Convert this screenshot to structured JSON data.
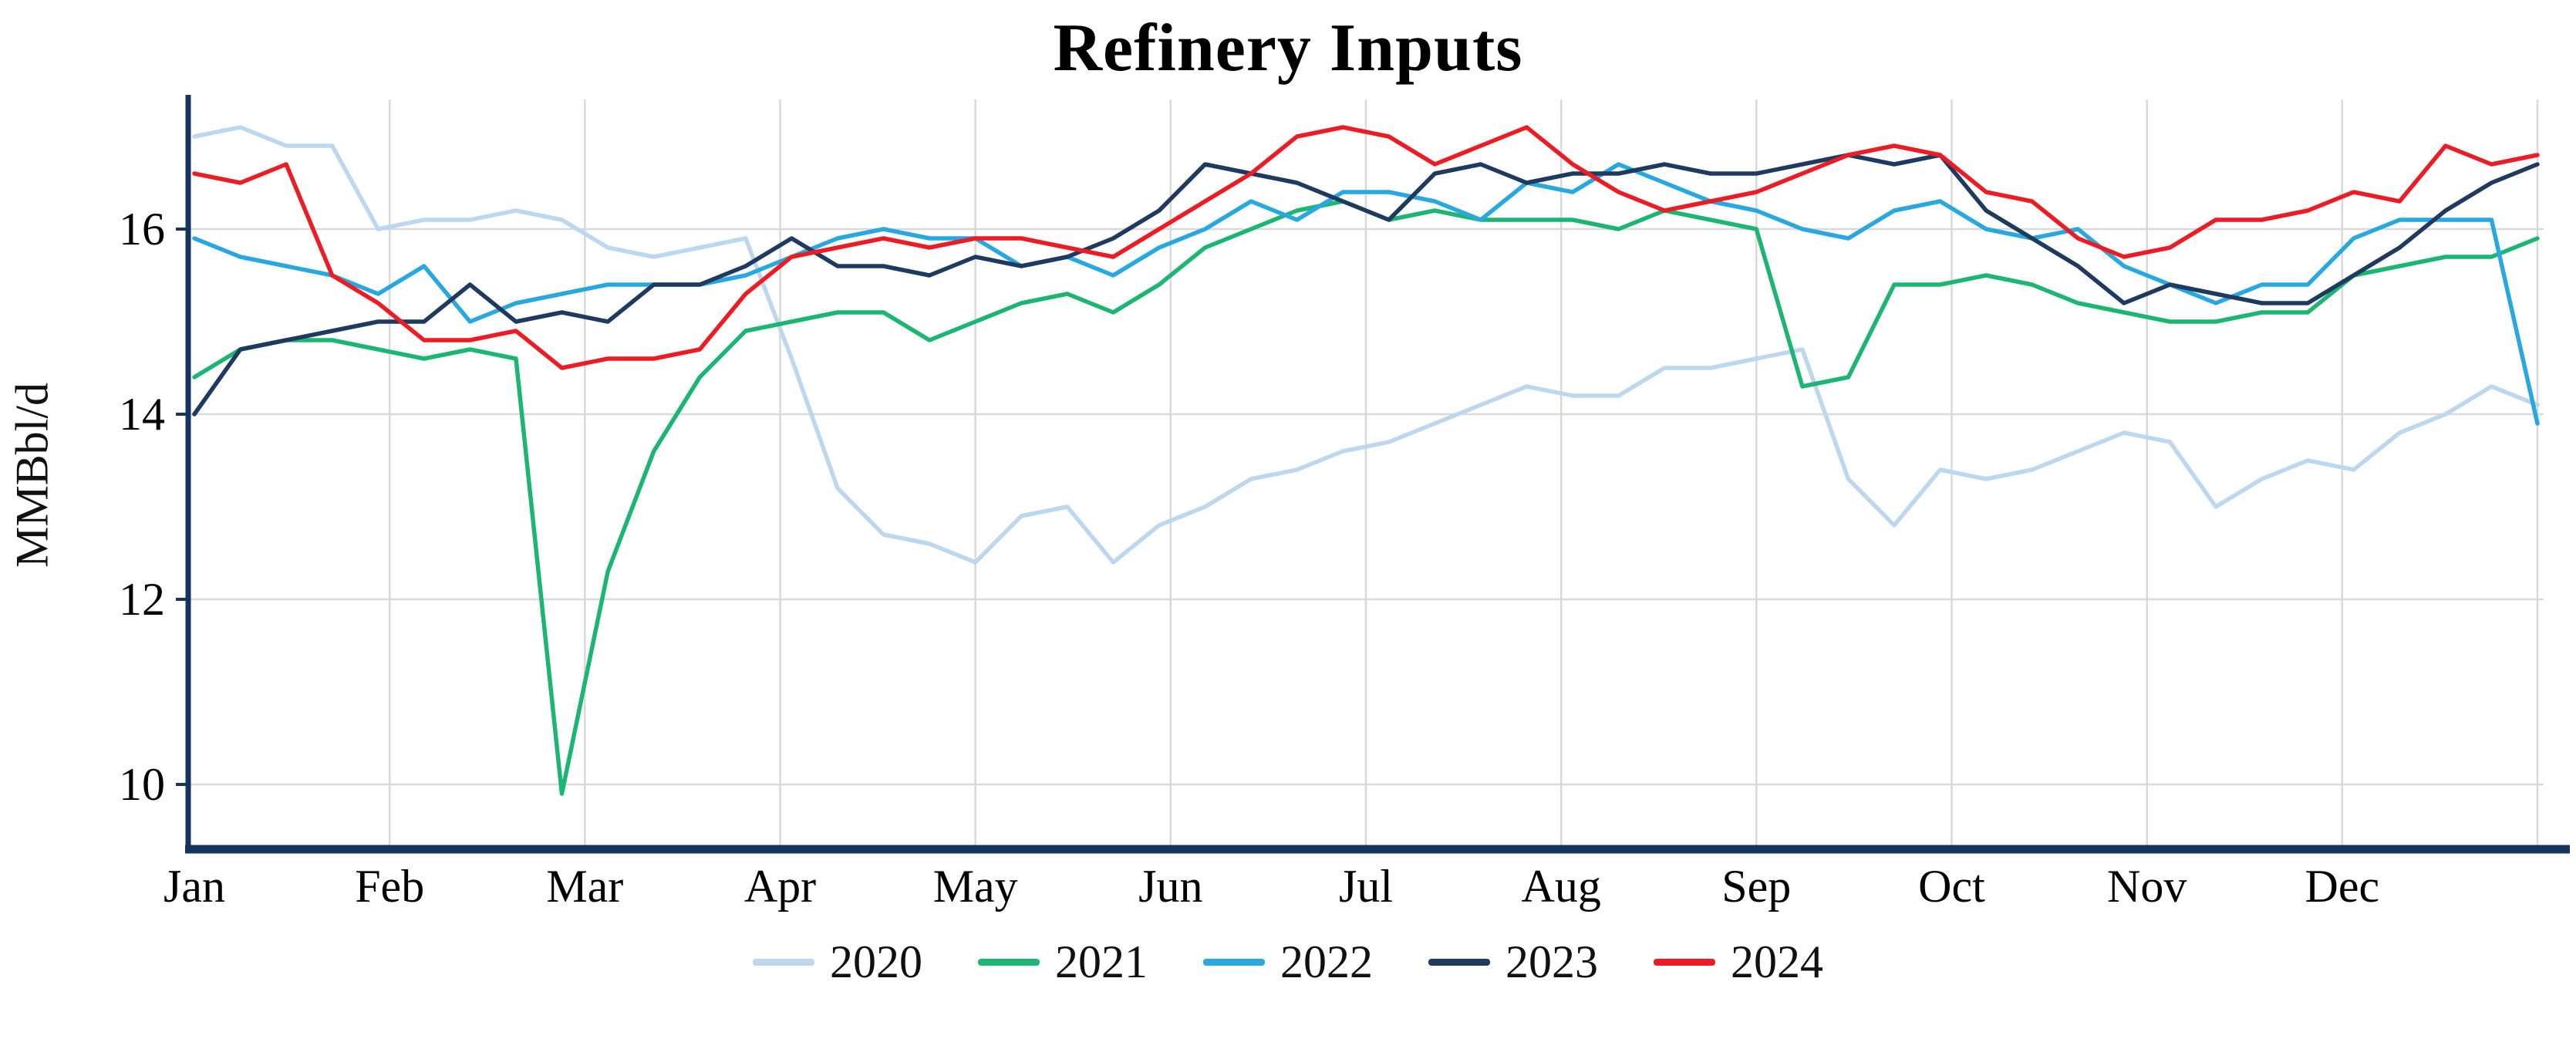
{
  "style": {
    "axis_color": "#16355d",
    "grid_color": "#d9d9d9",
    "background": "#ffffff",
    "text_color": "#000000"
  },
  "chart_data": {
    "type": "line",
    "title": "Refinery Inputs",
    "xlabel": "",
    "ylabel": "MMBbl/d",
    "x_frequency": "weekly",
    "months": [
      "Jan",
      "Feb",
      "Mar",
      "Apr",
      "May",
      "Jun",
      "Jul",
      "Aug",
      "Sep",
      "Oct",
      "Nov",
      "Dec"
    ],
    "y_ticks": [
      10,
      12,
      14,
      16
    ],
    "ylim": [
      9.3,
      17.4
    ],
    "grid": true,
    "legend_position": "bottom",
    "series": [
      {
        "name": "2020",
        "color": "#bcd7ee",
        "values": [
          17.0,
          17.1,
          16.9,
          16.9,
          16.0,
          16.1,
          16.1,
          16.2,
          16.1,
          15.8,
          15.7,
          15.8,
          15.9,
          14.6,
          13.2,
          12.7,
          12.6,
          12.4,
          12.9,
          13.0,
          12.4,
          12.8,
          13.0,
          13.3,
          13.4,
          13.6,
          13.7,
          13.9,
          14.1,
          14.3,
          14.2,
          14.2,
          14.5,
          14.5,
          14.6,
          14.7,
          13.3,
          12.8,
          13.4,
          13.3,
          13.4,
          13.6,
          13.8,
          13.7,
          13.0,
          13.3,
          13.5,
          13.4,
          13.8,
          14.0,
          14.3,
          14.1
        ]
      },
      {
        "name": "2021",
        "color": "#1cb572",
        "values": [
          14.4,
          14.7,
          14.8,
          14.8,
          14.7,
          14.6,
          14.7,
          14.6,
          9.9,
          12.3,
          13.6,
          14.4,
          14.9,
          15.0,
          15.1,
          15.1,
          14.8,
          15.0,
          15.2,
          15.3,
          15.1,
          15.4,
          15.8,
          16.0,
          16.2,
          16.3,
          16.1,
          16.2,
          16.1,
          16.1,
          16.1,
          16.0,
          16.2,
          16.1,
          16.0,
          14.3,
          14.4,
          15.4,
          15.4,
          15.5,
          15.4,
          15.2,
          15.1,
          15.0,
          15.0,
          15.1,
          15.1,
          15.5,
          15.6,
          15.7,
          15.7,
          15.9
        ]
      },
      {
        "name": "2022",
        "color": "#29a8e0",
        "values": [
          15.9,
          15.7,
          15.6,
          15.5,
          15.3,
          15.6,
          15.0,
          15.2,
          15.3,
          15.4,
          15.4,
          15.4,
          15.5,
          15.7,
          15.9,
          16.0,
          15.9,
          15.9,
          15.6,
          15.7,
          15.5,
          15.8,
          16.0,
          16.3,
          16.1,
          16.4,
          16.4,
          16.3,
          16.1,
          16.5,
          16.4,
          16.7,
          16.5,
          16.3,
          16.2,
          16.0,
          15.9,
          16.2,
          16.3,
          16.0,
          15.9,
          16.0,
          15.6,
          15.4,
          15.2,
          15.4,
          15.4,
          15.9,
          16.1,
          16.1,
          16.1,
          13.9
        ]
      },
      {
        "name": "2023",
        "color": "#1f3a5f",
        "values": [
          14.0,
          14.7,
          14.8,
          14.9,
          15.0,
          15.0,
          15.4,
          15.0,
          15.1,
          15.0,
          15.4,
          15.4,
          15.6,
          15.9,
          15.6,
          15.6,
          15.5,
          15.7,
          15.6,
          15.7,
          15.9,
          16.2,
          16.7,
          16.6,
          16.5,
          16.3,
          16.1,
          16.6,
          16.7,
          16.5,
          16.6,
          16.6,
          16.7,
          16.6,
          16.6,
          16.7,
          16.8,
          16.7,
          16.8,
          16.2,
          15.9,
          15.6,
          15.2,
          15.4,
          15.3,
          15.2,
          15.2,
          15.5,
          15.8,
          16.2,
          16.5,
          16.7
        ]
      },
      {
        "name": "2024",
        "color": "#ec1c24",
        "values": [
          16.6,
          16.5,
          16.7,
          15.5,
          15.2,
          14.8,
          14.8,
          14.9,
          14.5,
          14.6,
          14.6,
          14.7,
          15.3,
          15.7,
          15.8,
          15.9,
          15.8,
          15.9,
          15.9,
          15.8,
          15.7,
          16.0,
          16.3,
          16.6,
          17.0,
          17.1,
          17.0,
          16.7,
          16.9,
          17.1,
          16.7,
          16.4,
          16.2,
          16.3,
          16.4,
          16.6,
          16.8,
          16.9,
          16.8,
          16.4,
          16.3,
          15.9,
          15.7,
          15.8,
          16.1,
          16.1,
          16.2,
          16.4,
          16.3,
          16.9,
          16.7,
          16.8
        ]
      }
    ]
  }
}
